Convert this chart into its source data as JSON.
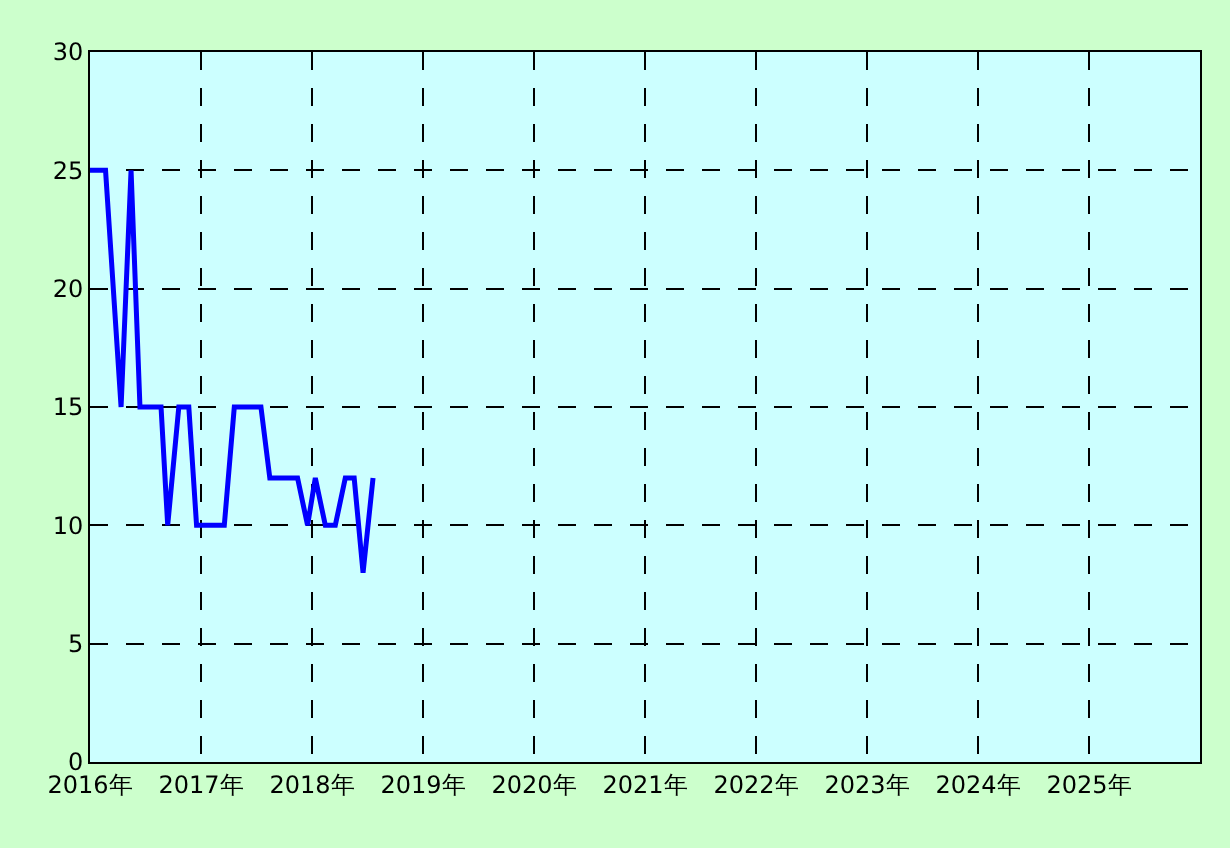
{
  "chart_data": {
    "type": "line",
    "x": [
      2016.0,
      2016.14,
      2016.28,
      2016.37,
      2016.45,
      2016.64,
      2016.7,
      2016.8,
      2016.89,
      2016.96,
      2017.21,
      2017.3,
      2017.54,
      2017.62,
      2017.87,
      2017.96,
      2018.03,
      2018.12,
      2018.21,
      2018.3,
      2018.38,
      2018.46,
      2018.55
    ],
    "series": [
      {
        "color": "#0000ff",
        "values": [
          25,
          25,
          15,
          25,
          15,
          15,
          10,
          15,
          15,
          10,
          10,
          15,
          15,
          12,
          12,
          10,
          12,
          10,
          10,
          12,
          12,
          8,
          12
        ]
      }
    ],
    "xlim": [
      2016,
      2026
    ],
    "xticks": [
      {
        "value": 2016,
        "label": "2016年"
      },
      {
        "value": 2017,
        "label": "2017年"
      },
      {
        "value": 2018,
        "label": "2018年"
      },
      {
        "value": 2019,
        "label": "2019年"
      },
      {
        "value": 2020,
        "label": "2020年"
      },
      {
        "value": 2021,
        "label": "2021年"
      },
      {
        "value": 2022,
        "label": "2022年"
      },
      {
        "value": 2023,
        "label": "2023年"
      },
      {
        "value": 2024,
        "label": "2024年"
      },
      {
        "value": 2025,
        "label": "2025年"
      }
    ],
    "ylim": [
      0,
      30
    ],
    "yticks": [
      0,
      5,
      10,
      15,
      20,
      25,
      30
    ],
    "grid": true,
    "legend": false,
    "marker": "none",
    "line_style": "solid"
  }
}
